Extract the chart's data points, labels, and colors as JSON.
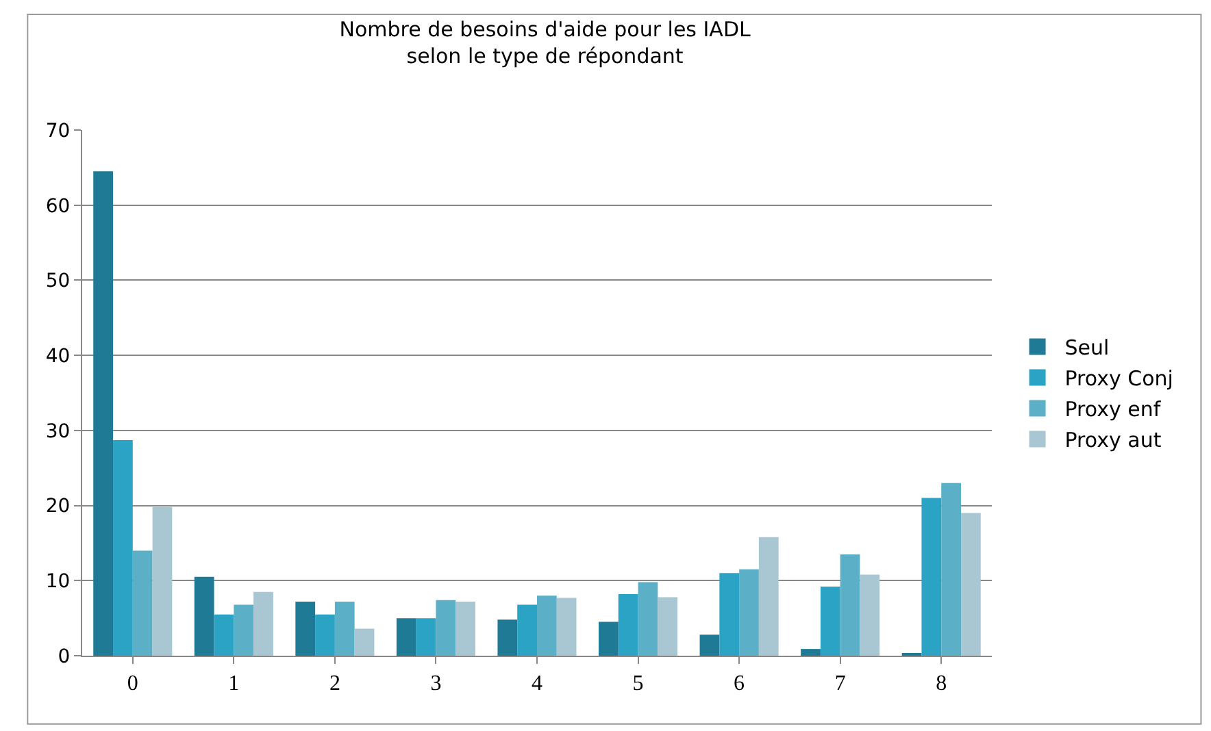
{
  "chart_data": {
    "type": "bar",
    "title": "Nombre de besoins d'aide pour les IADL\nselon le type de répondant",
    "categories": [
      "0",
      "1",
      "2",
      "3",
      "4",
      "5",
      "6",
      "7",
      "8"
    ],
    "series": [
      {
        "name": "Seul",
        "color": "#1f7a96",
        "values": [
          64.5,
          10.5,
          7.2,
          5,
          4.8,
          4.5,
          2.8,
          0.9,
          0.3
        ]
      },
      {
        "name": "Proxy Conj",
        "color": "#2aa3c4",
        "values": [
          28.7,
          5.5,
          5.5,
          5,
          6.8,
          8.2,
          11,
          9.2,
          21
        ]
      },
      {
        "name": "Proxy enf",
        "color": "#5bb0c8",
        "values": [
          14,
          6.8,
          7.2,
          7.4,
          8,
          9.8,
          11.5,
          13.5,
          23
        ]
      },
      {
        "name": "Proxy aut",
        "color": "#a9c6d3",
        "values": [
          19.8,
          8.5,
          3.6,
          7.2,
          7.7,
          7.8,
          15.8,
          10.8,
          19
        ]
      }
    ],
    "ylim": [
      0,
      70
    ],
    "yticks": [
      0,
      10,
      20,
      30,
      40,
      50,
      60,
      70
    ],
    "grid": "y",
    "legend": "right"
  }
}
